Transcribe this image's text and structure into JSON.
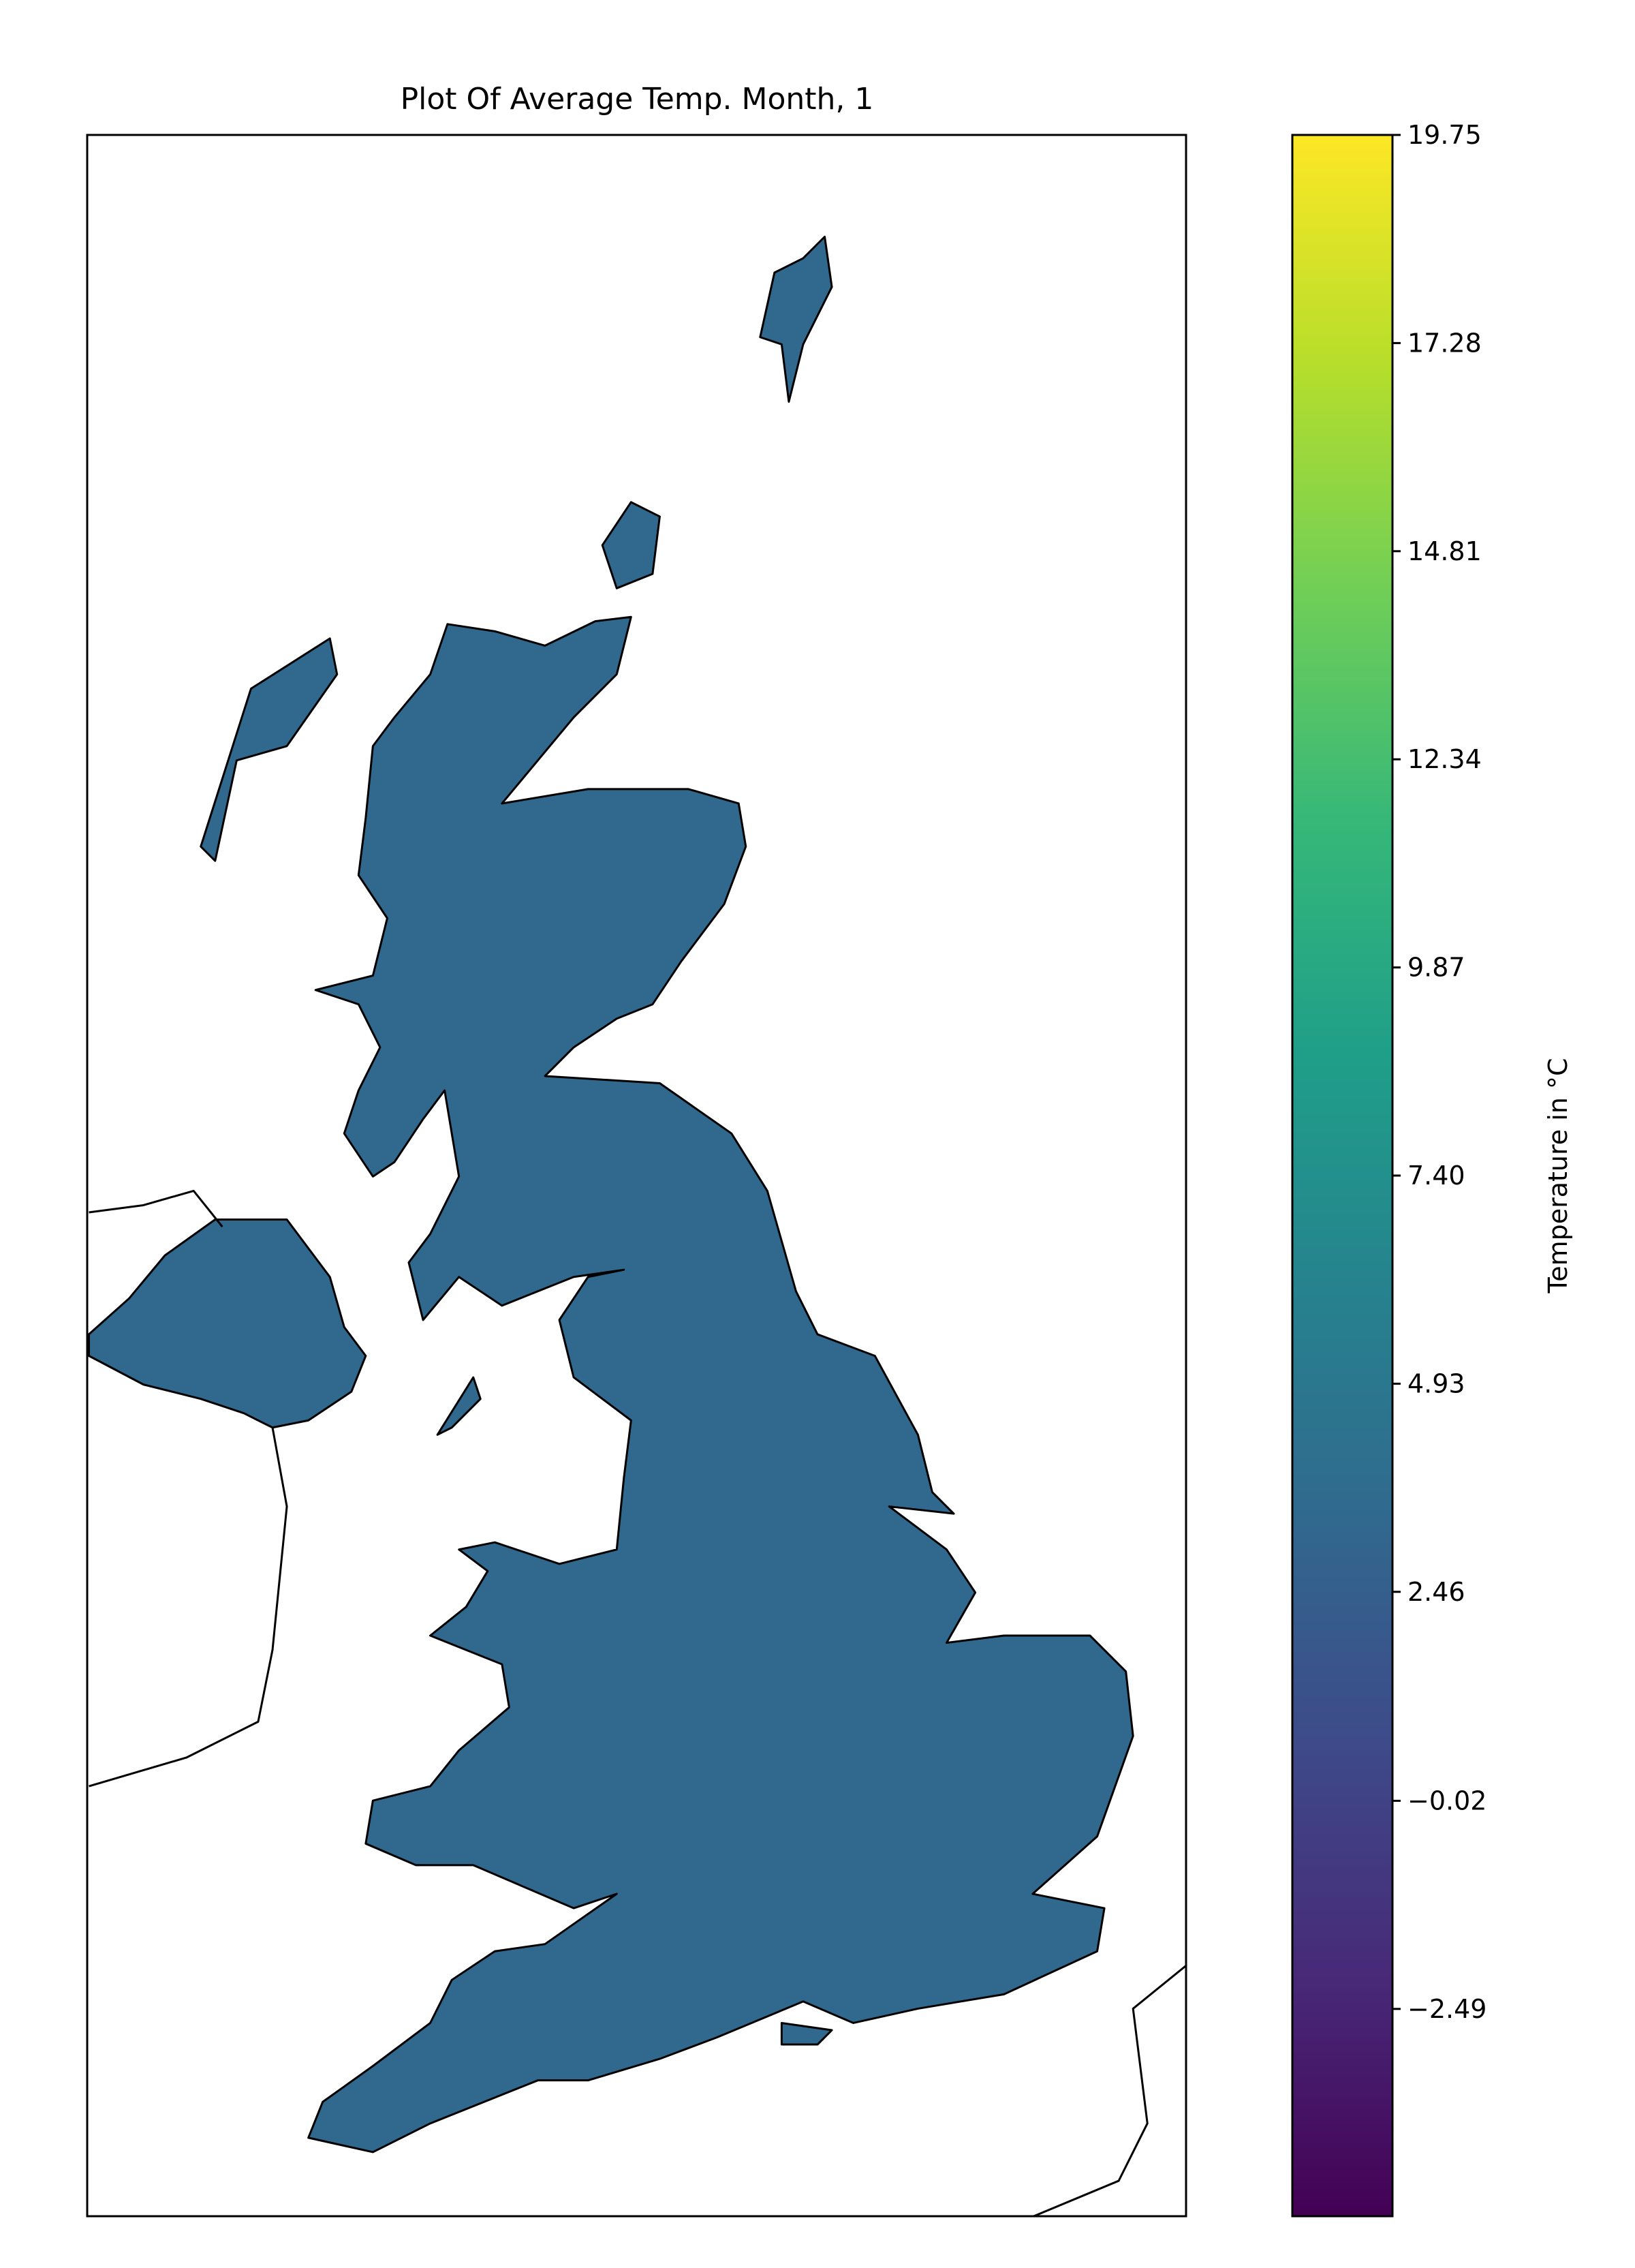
{
  "chart_data": {
    "type": "map",
    "title": "Plot Of Average Temp. Month, 1",
    "colorbar": {
      "label": "Temperature in °C",
      "cmap": "viridis",
      "lim": [
        -4.95,
        19.75
      ],
      "ticks": [
        19.75,
        17.28,
        14.81,
        12.34,
        9.87,
        {
          "value": 7.4,
          "label": "7.40"
        },
        4.93,
        2.46,
        {
          "value": -0.02,
          "label": "−0.02"
        },
        {
          "value": -2.49,
          "label": "−2.49"
        }
      ]
    }
  }
}
